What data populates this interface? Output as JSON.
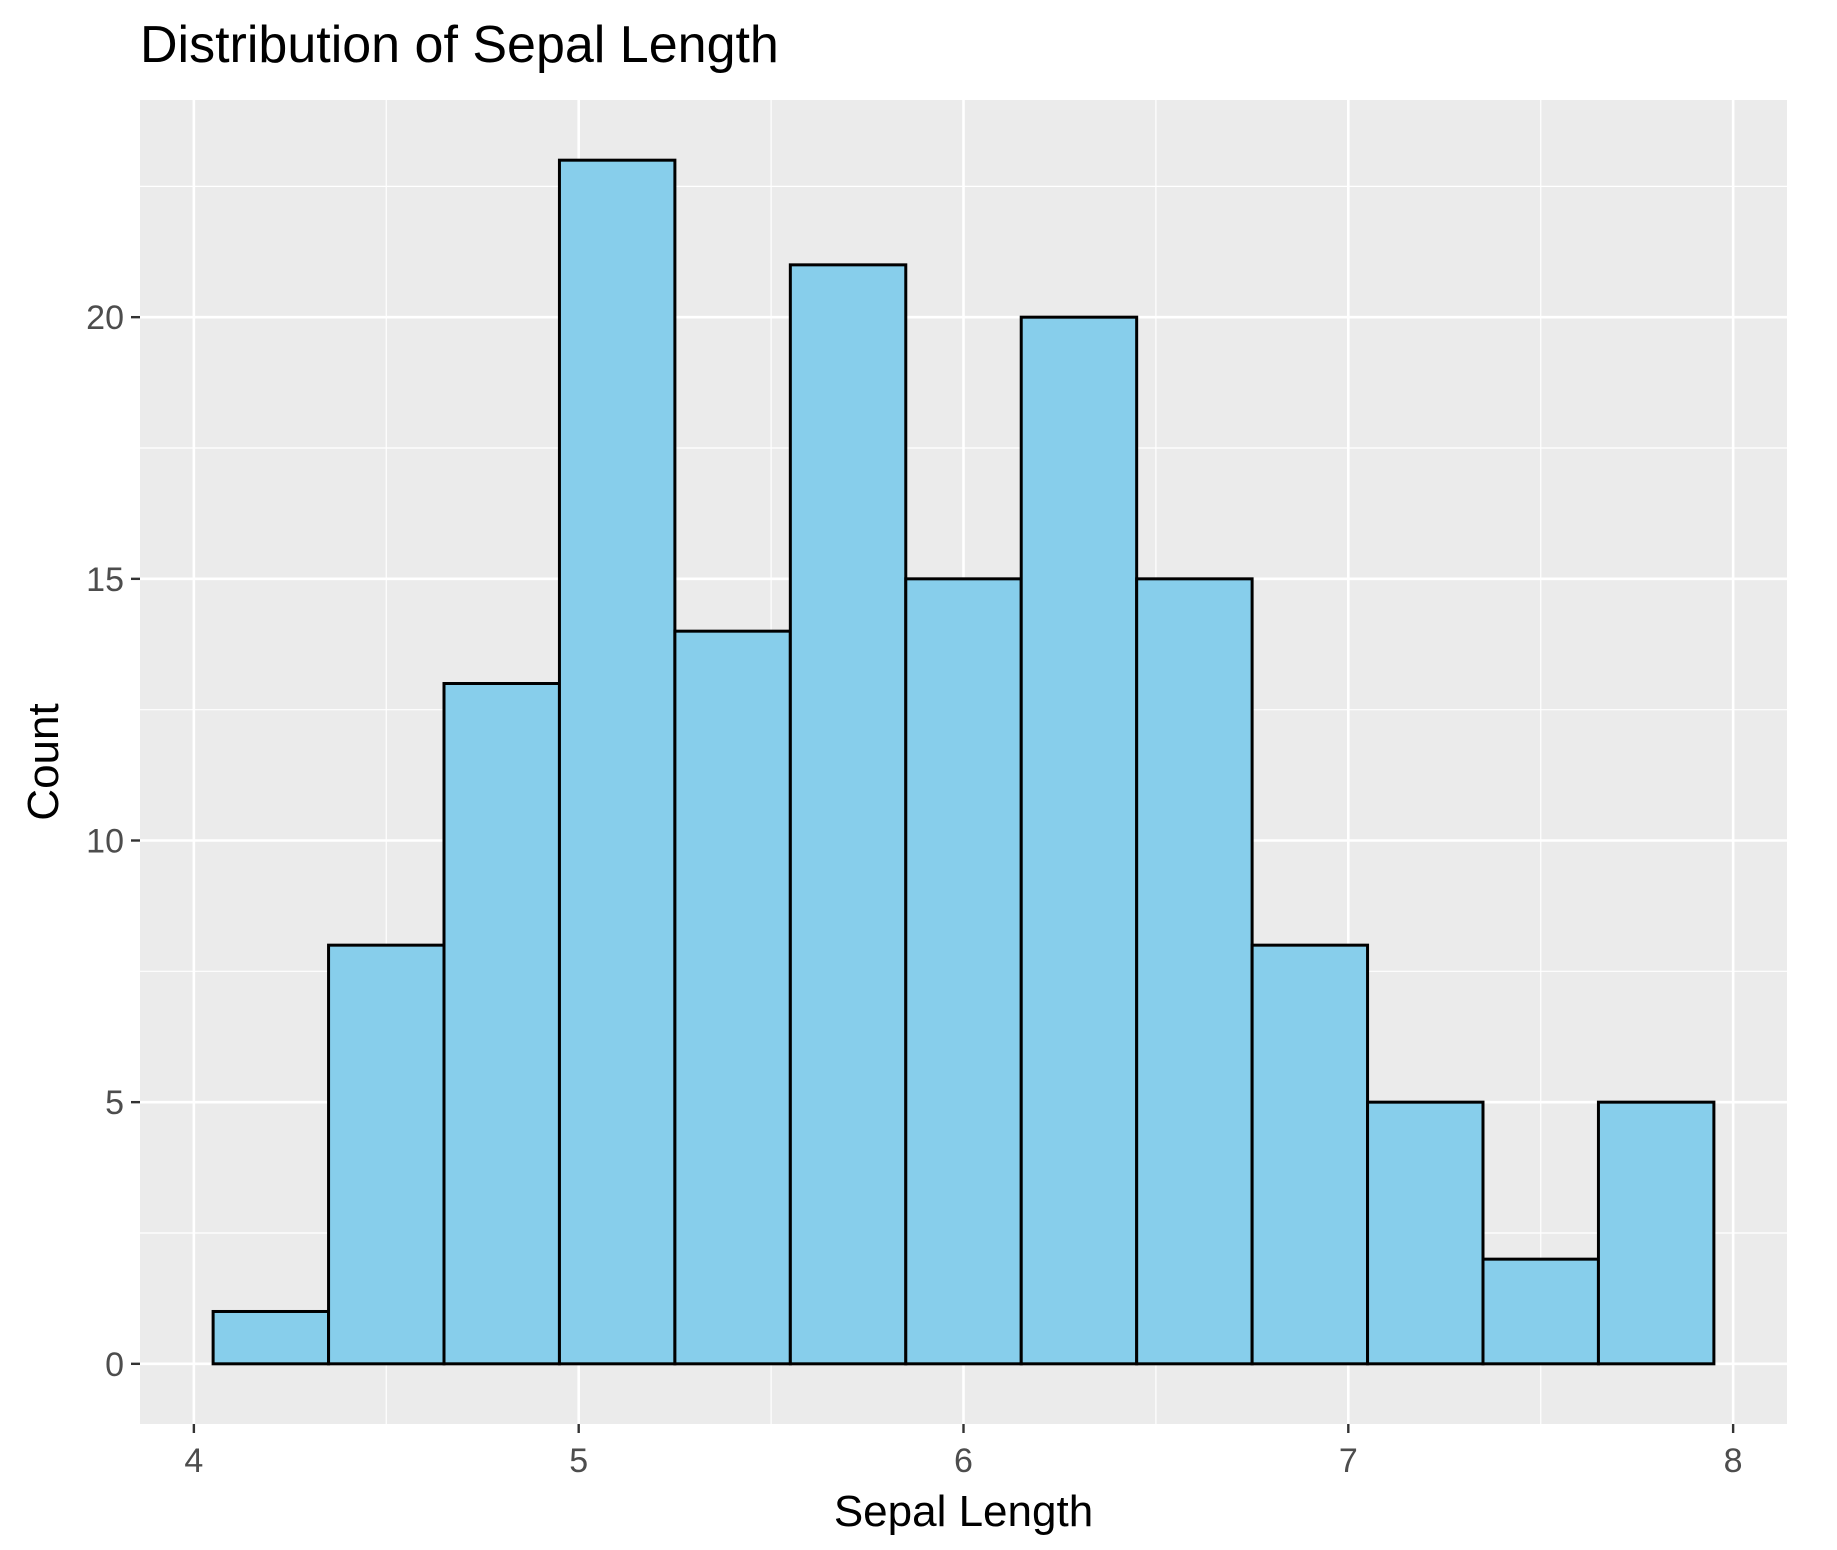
{
  "chart_data": {
    "type": "bar",
    "title": "Distribution of Sepal Length",
    "xlabel": "Sepal Length",
    "ylabel": "Count",
    "bin_width": 0.3,
    "bins": [
      {
        "x0": 4.05,
        "x1": 4.35,
        "count": 1
      },
      {
        "x0": 4.35,
        "x1": 4.65,
        "count": 8
      },
      {
        "x0": 4.65,
        "x1": 4.95,
        "count": 13
      },
      {
        "x0": 4.95,
        "x1": 5.25,
        "count": 23
      },
      {
        "x0": 5.25,
        "x1": 5.55,
        "count": 14
      },
      {
        "x0": 5.55,
        "x1": 5.85,
        "count": 21
      },
      {
        "x0": 5.85,
        "x1": 6.15,
        "count": 15
      },
      {
        "x0": 6.15,
        "x1": 6.45,
        "count": 20
      },
      {
        "x0": 6.45,
        "x1": 6.75,
        "count": 15
      },
      {
        "x0": 6.75,
        "x1": 7.05,
        "count": 8
      },
      {
        "x0": 7.05,
        "x1": 7.35,
        "count": 5
      },
      {
        "x0": 7.35,
        "x1": 7.65,
        "count": 2
      },
      {
        "x0": 7.65,
        "x1": 7.95,
        "count": 5
      }
    ],
    "xlim": [
      3.86,
      8.14
    ],
    "ylim": [
      -1.15,
      24.15
    ],
    "x_ticks": [
      4,
      5,
      6,
      7,
      8
    ],
    "y_ticks": [
      0,
      5,
      10,
      15,
      20
    ],
    "x_minor_ticks": [
      4.5,
      5.5,
      6.5,
      7.5
    ],
    "y_minor_ticks": [
      2.5,
      7.5,
      12.5,
      17.5,
      22.5
    ],
    "grid": true,
    "legend": "none",
    "colors": {
      "panel_background": "#ebebeb",
      "grid_major": "#ffffff",
      "grid_minor": "#ffffff",
      "bar_fill": "#87ceeb",
      "bar_stroke": "#000000",
      "tick_text": "#4d4d4d",
      "tick_mark": "#333333"
    }
  }
}
